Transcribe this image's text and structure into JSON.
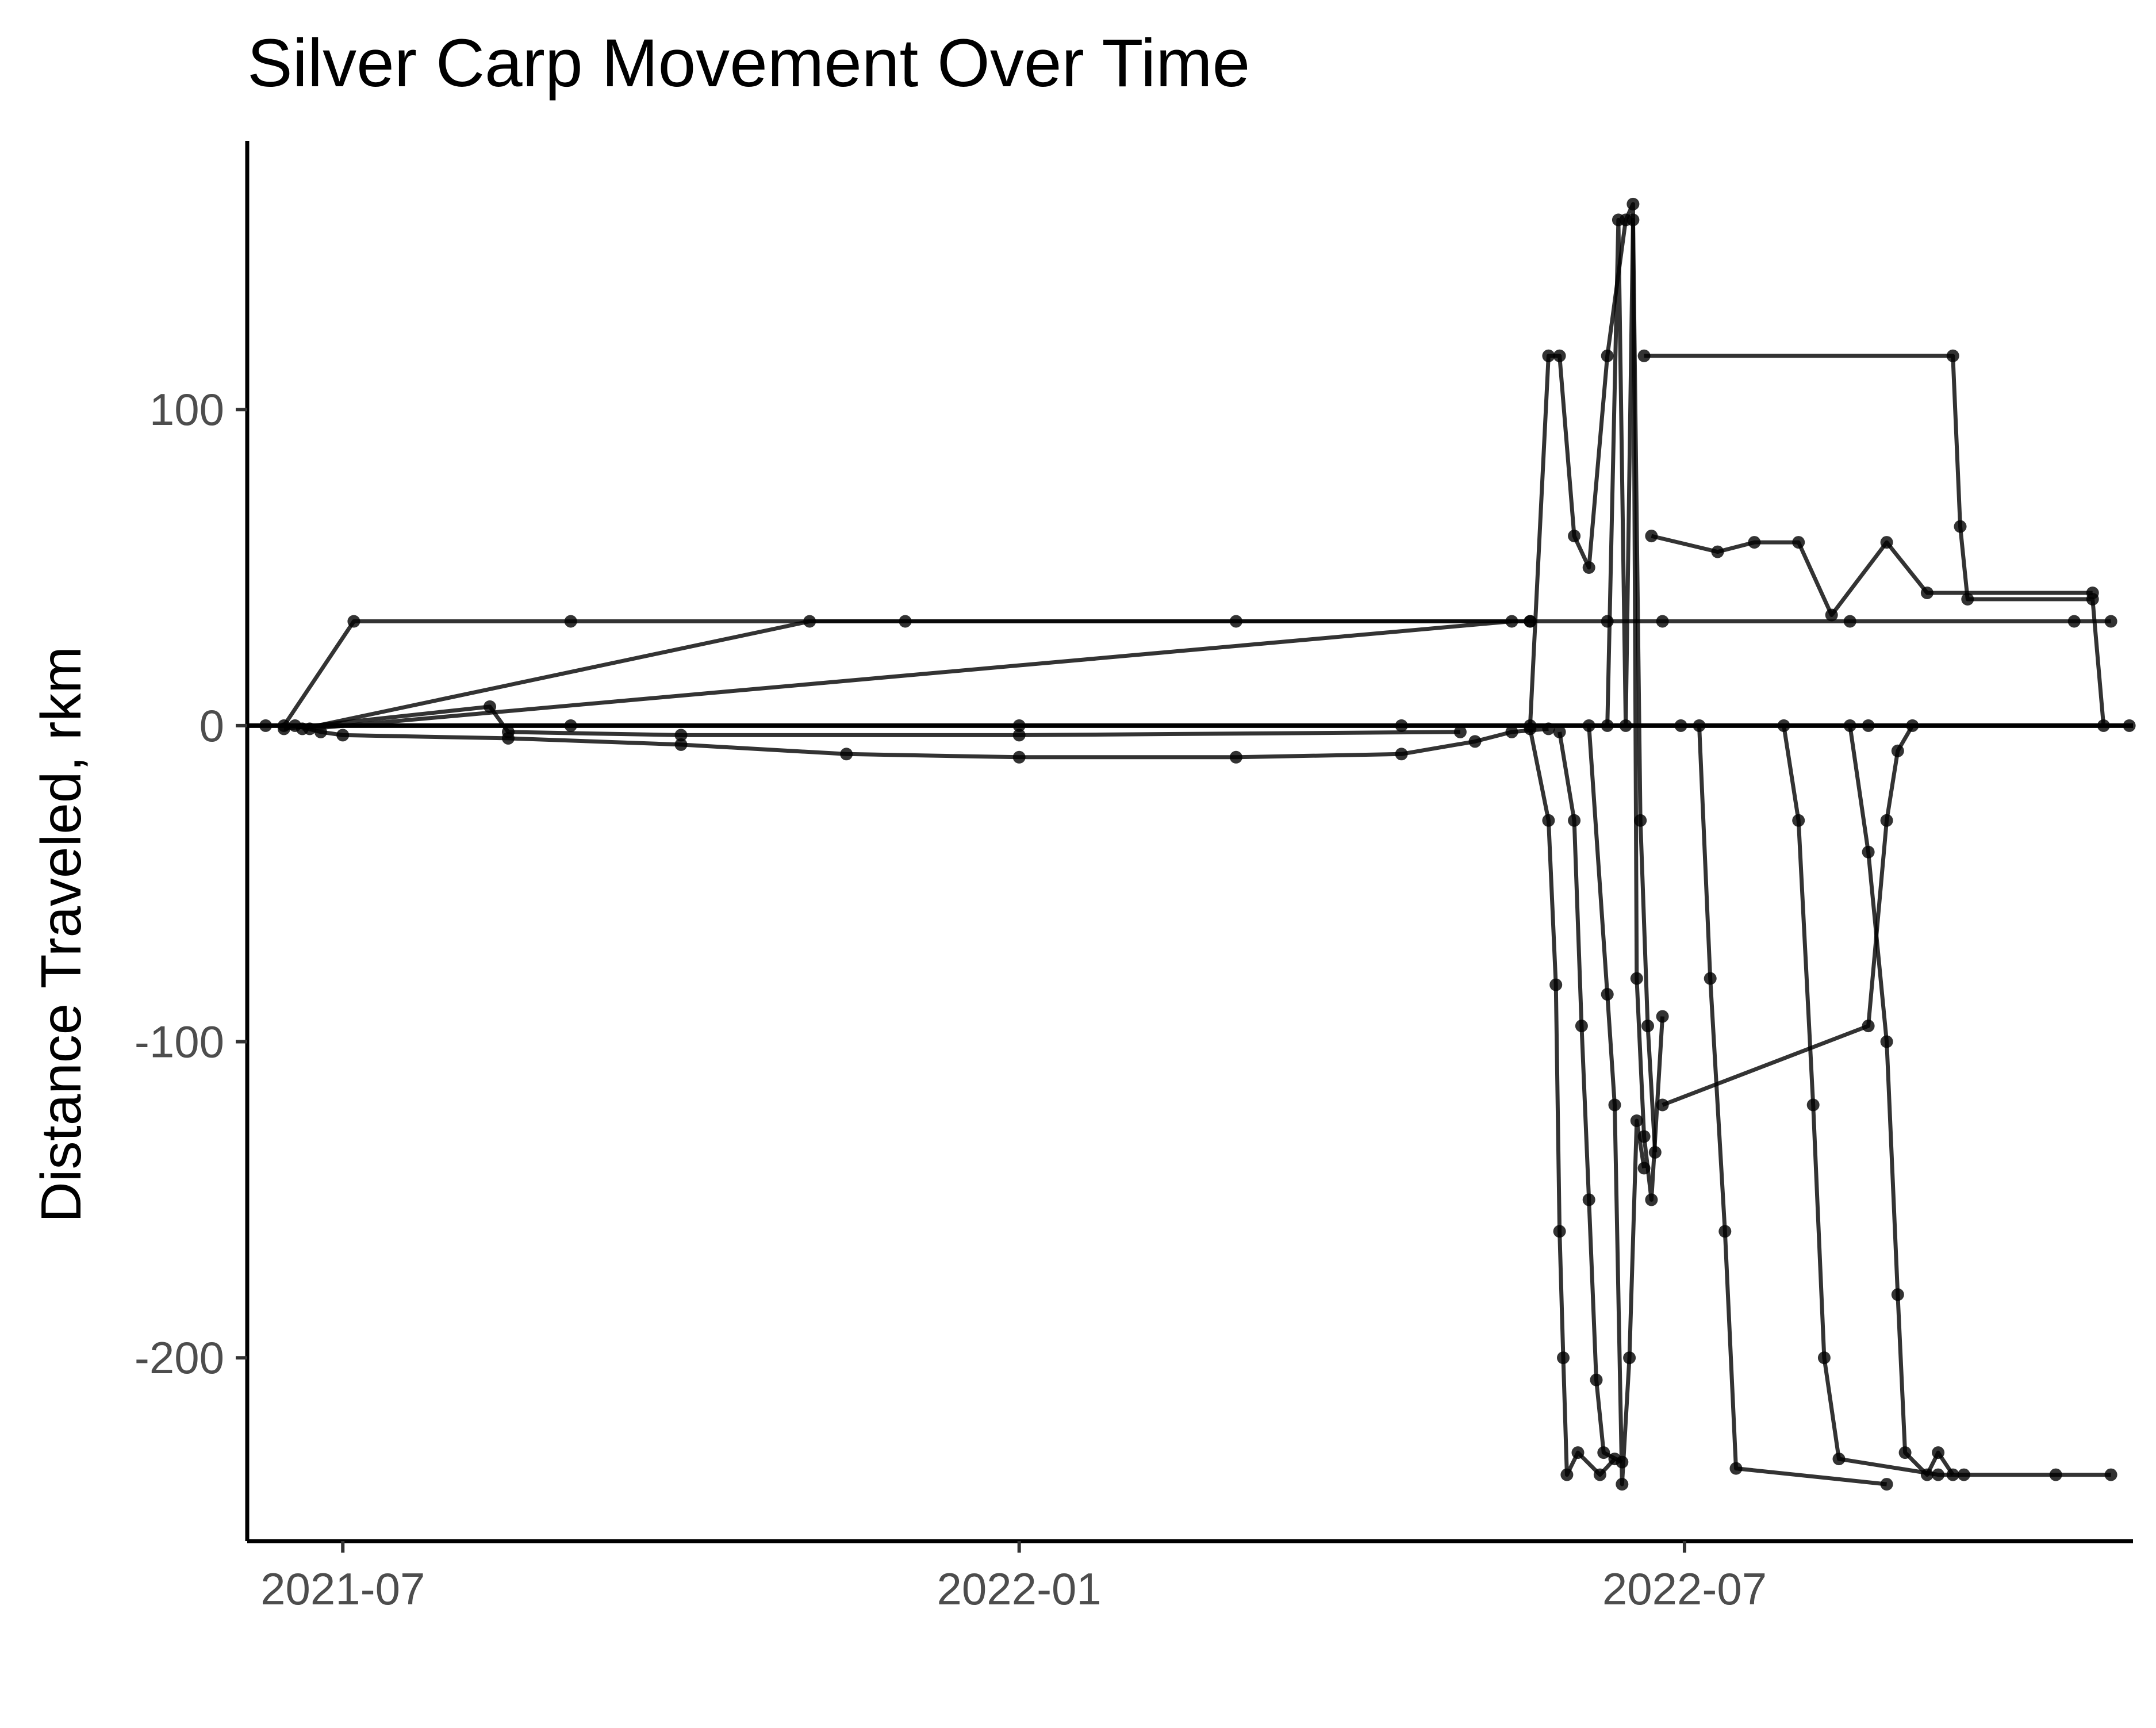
{
  "chart_data": {
    "type": "line",
    "title": "Silver Carp Movement Over Time",
    "xlabel": "",
    "ylabel": "Distance Traveled, rkm",
    "x_axis": {
      "type": "date",
      "range": [
        "2021-06-05",
        "2022-10-31"
      ],
      "ticks": [
        "2021-07-01",
        "2022-01-01",
        "2022-07-01"
      ],
      "tick_labels": [
        "2021-07",
        "2022-01",
        "2022-07"
      ]
    },
    "y_axis": {
      "range": [
        -258,
        185
      ],
      "ticks": [
        -200,
        -100,
        0,
        100
      ],
      "tick_labels": [
        "-200",
        "-100",
        "0",
        "100"
      ]
    },
    "reference_line": {
      "y": 0
    },
    "grid": false,
    "legend": "none",
    "colors": {
      "series": "#000000",
      "axis": "#000000",
      "ticks": "#4d4d4d"
    },
    "series": [
      {
        "points": [
          [
            "2021-06-18",
            0
          ],
          [
            "2021-06-25",
            -2
          ],
          [
            "2021-07-01",
            -3
          ],
          [
            "2021-08-15",
            -4
          ],
          [
            "2021-10-01",
            -6
          ],
          [
            "2021-11-15",
            -9
          ],
          [
            "2022-01-01",
            -10
          ],
          [
            "2022-03-01",
            -10
          ],
          [
            "2022-04-15",
            -9
          ],
          [
            "2022-05-05",
            -5
          ],
          [
            "2022-05-15",
            -2
          ],
          [
            "2022-05-25",
            -1
          ]
        ]
      },
      {
        "points": [
          [
            "2021-06-15",
            0
          ],
          [
            "2021-07-04",
            33
          ],
          [
            "2021-09-01",
            33
          ],
          [
            "2021-12-01",
            33
          ],
          [
            "2022-03-01",
            33
          ],
          [
            "2022-05-20",
            33
          ],
          [
            "2022-06-10",
            33
          ],
          [
            "2022-06-25",
            33
          ],
          [
            "2022-08-15",
            33
          ],
          [
            "2022-10-15",
            33
          ],
          [
            "2022-10-25",
            33
          ]
        ]
      },
      {
        "points": [
          [
            "2021-06-20",
            -1
          ],
          [
            "2021-11-05",
            33
          ],
          [
            "2022-05-20",
            33
          ]
        ]
      },
      {
        "points": [
          [
            "2021-06-22",
            -1
          ],
          [
            "2022-05-15",
            33
          ]
        ]
      },
      {
        "points": [
          [
            "2021-06-15",
            -1
          ],
          [
            "2021-08-10",
            6
          ],
          [
            "2021-08-15",
            -2
          ],
          [
            "2021-10-01",
            -3
          ],
          [
            "2022-01-01",
            -3
          ],
          [
            "2022-05-01",
            -2
          ]
        ]
      },
      {
        "points": [
          [
            "2021-06-10",
            0
          ],
          [
            "2021-09-01",
            0
          ],
          [
            "2022-01-01",
            0
          ],
          [
            "2022-04-15",
            0
          ],
          [
            "2022-06-30",
            0
          ],
          [
            "2022-08-20",
            0
          ],
          [
            "2022-10-30",
            0
          ]
        ]
      },
      {
        "points": [
          [
            "2022-05-20",
            -1
          ],
          [
            "2022-05-25",
            -30
          ],
          [
            "2022-05-27",
            -82
          ],
          [
            "2022-05-28",
            -160
          ],
          [
            "2022-05-29",
            -200
          ],
          [
            "2022-05-30",
            -237
          ],
          [
            "2022-06-02",
            -230
          ],
          [
            "2022-06-08",
            -237
          ],
          [
            "2022-06-12",
            -232
          ]
        ]
      },
      {
        "points": [
          [
            "2022-05-28",
            -2
          ],
          [
            "2022-06-01",
            -30
          ],
          [
            "2022-06-03",
            -95
          ],
          [
            "2022-06-05",
            -150
          ],
          [
            "2022-06-07",
            -207
          ],
          [
            "2022-06-09",
            -230
          ],
          [
            "2022-06-14",
            -233
          ]
        ]
      },
      {
        "points": [
          [
            "2022-05-20",
            0
          ],
          [
            "2022-05-25",
            117
          ],
          [
            "2022-05-28",
            117
          ],
          [
            "2022-06-01",
            60
          ],
          [
            "2022-06-05",
            50
          ],
          [
            "2022-06-10",
            117
          ],
          [
            "2022-06-15",
            160
          ],
          [
            "2022-06-17",
            165
          ],
          [
            "2022-06-18",
            -80
          ],
          [
            "2022-06-20",
            -130
          ],
          [
            "2022-06-22",
            -150
          ],
          [
            "2022-06-25",
            -92
          ]
        ]
      },
      {
        "points": [
          [
            "2022-06-05",
            0
          ],
          [
            "2022-06-10",
            -85
          ],
          [
            "2022-06-12",
            -120
          ],
          [
            "2022-06-14",
            -240
          ],
          [
            "2022-06-16",
            -200
          ],
          [
            "2022-06-18",
            -125
          ],
          [
            "2022-06-20",
            -140
          ]
        ]
      },
      {
        "points": [
          [
            "2022-06-10",
            0
          ],
          [
            "2022-06-13",
            160
          ],
          [
            "2022-06-15",
            0
          ],
          [
            "2022-06-17",
            160
          ],
          [
            "2022-06-19",
            -30
          ],
          [
            "2022-06-21",
            -95
          ],
          [
            "2022-06-23",
            -135
          ]
        ]
      },
      {
        "points": [
          [
            "2022-06-20",
            117
          ],
          [
            "2022-09-12",
            117
          ],
          [
            "2022-09-14",
            63
          ],
          [
            "2022-09-16",
            40
          ],
          [
            "2022-10-20",
            40
          ],
          [
            "2022-10-23",
            0
          ]
        ]
      },
      {
        "points": [
          [
            "2022-06-22",
            60
          ],
          [
            "2022-07-10",
            55
          ],
          [
            "2022-07-20",
            58
          ],
          [
            "2022-08-01",
            58
          ],
          [
            "2022-08-10",
            35
          ],
          [
            "2022-08-25",
            58
          ],
          [
            "2022-09-05",
            42
          ],
          [
            "2022-10-20",
            42
          ]
        ]
      },
      {
        "points": [
          [
            "2022-06-25",
            -120
          ],
          [
            "2022-08-20",
            -95
          ],
          [
            "2022-08-25",
            -30
          ],
          [
            "2022-08-28",
            -8
          ],
          [
            "2022-09-01",
            0
          ]
        ]
      },
      {
        "points": [
          [
            "2022-07-05",
            0
          ],
          [
            "2022-07-08",
            -80
          ],
          [
            "2022-07-12",
            -160
          ],
          [
            "2022-07-15",
            -235
          ],
          [
            "2022-08-25",
            -240
          ]
        ]
      },
      {
        "points": [
          [
            "2022-07-28",
            0
          ],
          [
            "2022-08-01",
            -30
          ],
          [
            "2022-08-05",
            -120
          ],
          [
            "2022-08-08",
            -200
          ],
          [
            "2022-08-12",
            -232
          ],
          [
            "2022-09-08",
            -237
          ],
          [
            "2022-09-15",
            -237
          ],
          [
            "2022-10-10",
            -237
          ],
          [
            "2022-10-25",
            -237
          ]
        ]
      },
      {
        "points": [
          [
            "2022-08-15",
            0
          ],
          [
            "2022-08-20",
            -40
          ],
          [
            "2022-08-25",
            -100
          ],
          [
            "2022-08-28",
            -180
          ],
          [
            "2022-08-30",
            -230
          ],
          [
            "2022-09-05",
            -237
          ],
          [
            "2022-09-08",
            -230
          ],
          [
            "2022-09-12",
            -237
          ]
        ]
      }
    ]
  }
}
